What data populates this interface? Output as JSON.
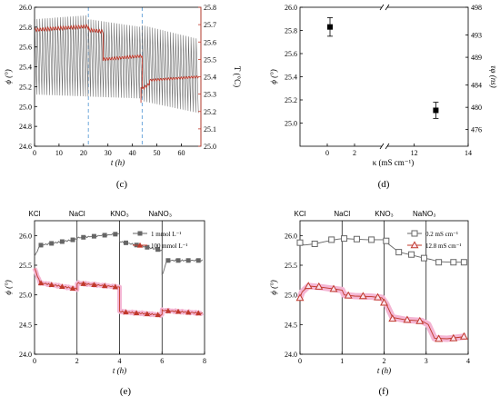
{
  "colors": {
    "red": "#c0392b",
    "gray": "#555555",
    "pink": "#f4b6d4",
    "blue_dash": "#6fa8dc"
  },
  "chart_data": [
    {
      "id": "c",
      "caption": "(c)",
      "type": "line",
      "xlabel": "t (h)",
      "ylabel": "ϕ (°)",
      "y2label": "T (°C)",
      "xlim": [
        0,
        68
      ],
      "ylim": [
        24.6,
        26.0
      ],
      "y2lim": [
        25.0,
        25.8
      ],
      "xticks": [
        "0",
        "10",
        "20",
        "30",
        "40",
        "50",
        "60"
      ],
      "yticks": [
        "24.6",
        "24.8",
        "25.0",
        "25.2",
        "25.4",
        "25.6",
        "25.8",
        "26.0"
      ],
      "y2ticks": [
        "25.0",
        "25.1",
        "25.2",
        "25.3",
        "25.4",
        "25.5",
        "25.6",
        "25.7",
        "25.8"
      ],
      "vlines": [
        22,
        44
      ],
      "series": [
        {
          "axis": "left",
          "color": "gray",
          "period": 1.05,
          "segments": [
            {
              "x0": 0,
              "x1": 22,
              "hi0": 25.88,
              "hi1": 25.92,
              "lo0": 25.12,
              "lo1": 25.1
            },
            {
              "x0": 22,
              "x1": 44,
              "hi0": 25.88,
              "hi1": 25.8,
              "lo0": 25.1,
              "lo1": 25.08
            },
            {
              "x0": 44,
              "x1": 67,
              "hi0": 25.82,
              "hi1": 25.68,
              "lo0": 25.05,
              "lo1": 24.93
            }
          ]
        },
        {
          "axis": "right",
          "color": "red",
          "segments": [
            {
              "x0": 0,
              "x1": 22,
              "y0": 25.67,
              "y1": 25.69,
              "amp": 0.01
            },
            {
              "x0": 22,
              "x1": 28,
              "y0": 25.67,
              "y1": 25.66,
              "amp": 0.01
            },
            {
              "x0": 28,
              "x1": 44,
              "y0": 25.5,
              "y1": 25.52,
              "amp": 0.008
            },
            {
              "x0": 44,
              "x1": 47,
              "y0": 25.33,
              "y1": 25.36,
              "amp": 0.008
            },
            {
              "x0": 47,
              "x1": 67,
              "y0": 25.38,
              "y1": 25.4,
              "amp": 0.006
            }
          ],
          "spikes": [
            {
              "x": 43.5,
              "y": 25.25
            }
          ]
        }
      ]
    },
    {
      "id": "d",
      "caption": "(d)",
      "type": "scatter",
      "xlabel": "κ (mS cm⁻¹)",
      "ylabel": "ϕ (°)",
      "y2label": "τφ (ns)",
      "xlim": [
        -2,
        14
      ],
      "ylim": [
        24.8,
        26.0
      ],
      "y2lim": [
        473,
        498
      ],
      "xticks": [
        "0",
        "2",
        "12",
        "14"
      ],
      "yticks": [
        "25.0",
        "25.2",
        "25.4",
        "25.6",
        "25.8",
        "26.0"
      ],
      "y2ticks": [
        "476",
        "480",
        "484",
        "489",
        "493",
        "498"
      ],
      "points": [
        {
          "x": 0.2,
          "y": 25.83,
          "err": 0.08
        },
        {
          "x": 12.8,
          "y": 25.11,
          "err": 0.07
        }
      ]
    },
    {
      "id": "e",
      "caption": "(e)",
      "type": "line",
      "xlabel": "t (h)",
      "ylabel": "ϕ (°)",
      "xlim": [
        0,
        8
      ],
      "ylim": [
        24.0,
        26.25
      ],
      "xticks": [
        "0",
        "2",
        "4",
        "6",
        "8"
      ],
      "yticks": [
        "24.0",
        "24.5",
        "25.0",
        "25.5",
        "26.0"
      ],
      "vlines": [
        2,
        4,
        6
      ],
      "salts": [
        "KCl",
        "NaCl",
        "KNO₃",
        "NaNO₃"
      ],
      "series": [
        {
          "name": "1 mmol L⁻¹",
          "color": "gray",
          "marker": "square",
          "segments": [
            {
              "x0": 0,
              "x1": 2,
              "y0": 25.82,
              "y1": 25.94,
              "start": 25.65
            },
            {
              "x0": 2,
              "x1": 4,
              "y0": 25.96,
              "y1": 26.03
            },
            {
              "x0": 4,
              "x1": 6,
              "y0": 25.9,
              "y1": 25.75
            },
            {
              "x0": 6,
              "x1": 7.9,
              "y0": 25.58,
              "y1": 25.58,
              "start": 25.32
            }
          ]
        },
        {
          "name": "100 mmol L⁻¹",
          "color": "red",
          "marker": "triangle",
          "segments": [
            {
              "x0": 0,
              "x1": 2,
              "y0": 25.22,
              "y1": 25.1,
              "start": 25.45
            },
            {
              "x0": 2,
              "x1": 4,
              "y0": 25.2,
              "y1": 25.13
            },
            {
              "x0": 4,
              "x1": 6,
              "y0": 24.72,
              "y1": 24.66
            },
            {
              "x0": 6,
              "x1": 7.9,
              "y0": 24.74,
              "y1": 24.69
            }
          ]
        }
      ]
    },
    {
      "id": "f",
      "caption": "(f)",
      "type": "line",
      "xlabel": "t (h)",
      "ylabel": "ϕ (°)",
      "xlim": [
        0,
        4
      ],
      "ylim": [
        24.0,
        26.25
      ],
      "xticks": [
        "0",
        "1",
        "2",
        "3",
        "4"
      ],
      "yticks": [
        "24.0",
        "24.5",
        "25.0",
        "25.5",
        "26.0"
      ],
      "vlines": [
        1,
        2,
        3
      ],
      "salts": [
        "KCl",
        "NaCl",
        "KNO₃",
        "NaNO₃"
      ],
      "series": [
        {
          "name": "0.2 mS cm⁻¹",
          "color": "gray",
          "marker": "square-open",
          "points": [
            [
              0,
              25.88
            ],
            [
              0.1,
              25.84
            ],
            [
              0.35,
              25.86
            ],
            [
              0.6,
              25.9
            ],
            [
              0.9,
              25.94
            ],
            [
              1.05,
              25.95
            ],
            [
              1.3,
              25.94
            ],
            [
              1.6,
              25.93
            ],
            [
              1.9,
              25.93
            ],
            [
              2.0,
              25.93
            ],
            [
              2.1,
              25.86
            ],
            [
              2.35,
              25.72
            ],
            [
              2.6,
              25.68
            ],
            [
              2.95,
              25.62
            ],
            [
              3.1,
              25.6
            ],
            [
              3.3,
              25.56
            ],
            [
              3.6,
              25.55
            ],
            [
              3.95,
              25.55
            ]
          ],
          "markers": [
            [
              0,
              25.88
            ],
            [
              0.35,
              25.86
            ],
            [
              0.75,
              25.93
            ],
            [
              1.05,
              25.95
            ],
            [
              1.35,
              25.94
            ],
            [
              1.7,
              25.93
            ],
            [
              2.05,
              25.91
            ],
            [
              2.35,
              25.72
            ],
            [
              2.65,
              25.68
            ],
            [
              2.95,
              25.62
            ],
            [
              3.3,
              25.55
            ],
            [
              3.65,
              25.55
            ],
            [
              3.9,
              25.55
            ]
          ]
        },
        {
          "name": "12.8 mS cm⁻¹",
          "color": "red",
          "marker": "triangle-open",
          "points": [
            [
              0,
              24.95
            ],
            [
              0.05,
              25.05
            ],
            [
              0.2,
              25.15
            ],
            [
              0.5,
              25.13
            ],
            [
              0.8,
              25.1
            ],
            [
              1.0,
              25.08
            ],
            [
              1.05,
              25.0
            ],
            [
              1.3,
              24.98
            ],
            [
              1.7,
              24.97
            ],
            [
              1.95,
              24.95
            ],
            [
              2.05,
              24.85
            ],
            [
              2.2,
              24.62
            ],
            [
              2.5,
              24.58
            ],
            [
              2.9,
              24.56
            ],
            [
              3.05,
              24.5
            ],
            [
              3.2,
              24.27
            ],
            [
              3.5,
              24.26
            ],
            [
              3.95,
              24.3
            ]
          ],
          "markers": [
            [
              0,
              24.95
            ],
            [
              0.2,
              25.15
            ],
            [
              0.45,
              25.14
            ],
            [
              0.8,
              25.1
            ],
            [
              1.15,
              24.99
            ],
            [
              1.5,
              24.98
            ],
            [
              1.85,
              24.96
            ],
            [
              2.0,
              24.87
            ],
            [
              2.2,
              24.6
            ],
            [
              2.55,
              24.58
            ],
            [
              2.85,
              24.56
            ],
            [
              3.3,
              24.26
            ],
            [
              3.65,
              24.27
            ],
            [
              3.9,
              24.3
            ]
          ]
        }
      ]
    }
  ]
}
